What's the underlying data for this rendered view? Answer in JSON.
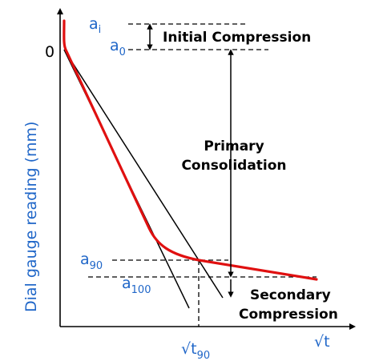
{
  "diagram": {
    "axes": {
      "y_label": "Dial gauge reading (mm)",
      "x_label": "√t",
      "origin_label": "0"
    },
    "markers": {
      "a_i": {
        "base": "a",
        "sub": "i"
      },
      "a_0": {
        "base": "a",
        "sub": "0"
      },
      "a_90": {
        "base": "a",
        "sub": "90"
      },
      "a_100": {
        "base": "a",
        "sub": "100"
      },
      "sqrt_t90": {
        "base": "√t",
        "sub": "90"
      }
    },
    "regions": {
      "initial": "Initial Compression",
      "primary_line1": "Primary",
      "primary_line2": "Consolidation",
      "secondary_line1": "Secondary",
      "secondary_line2": "Compression"
    },
    "colors": {
      "curve": "#e01010",
      "text_blue": "#1f66c8",
      "lines": "#000000"
    }
  }
}
